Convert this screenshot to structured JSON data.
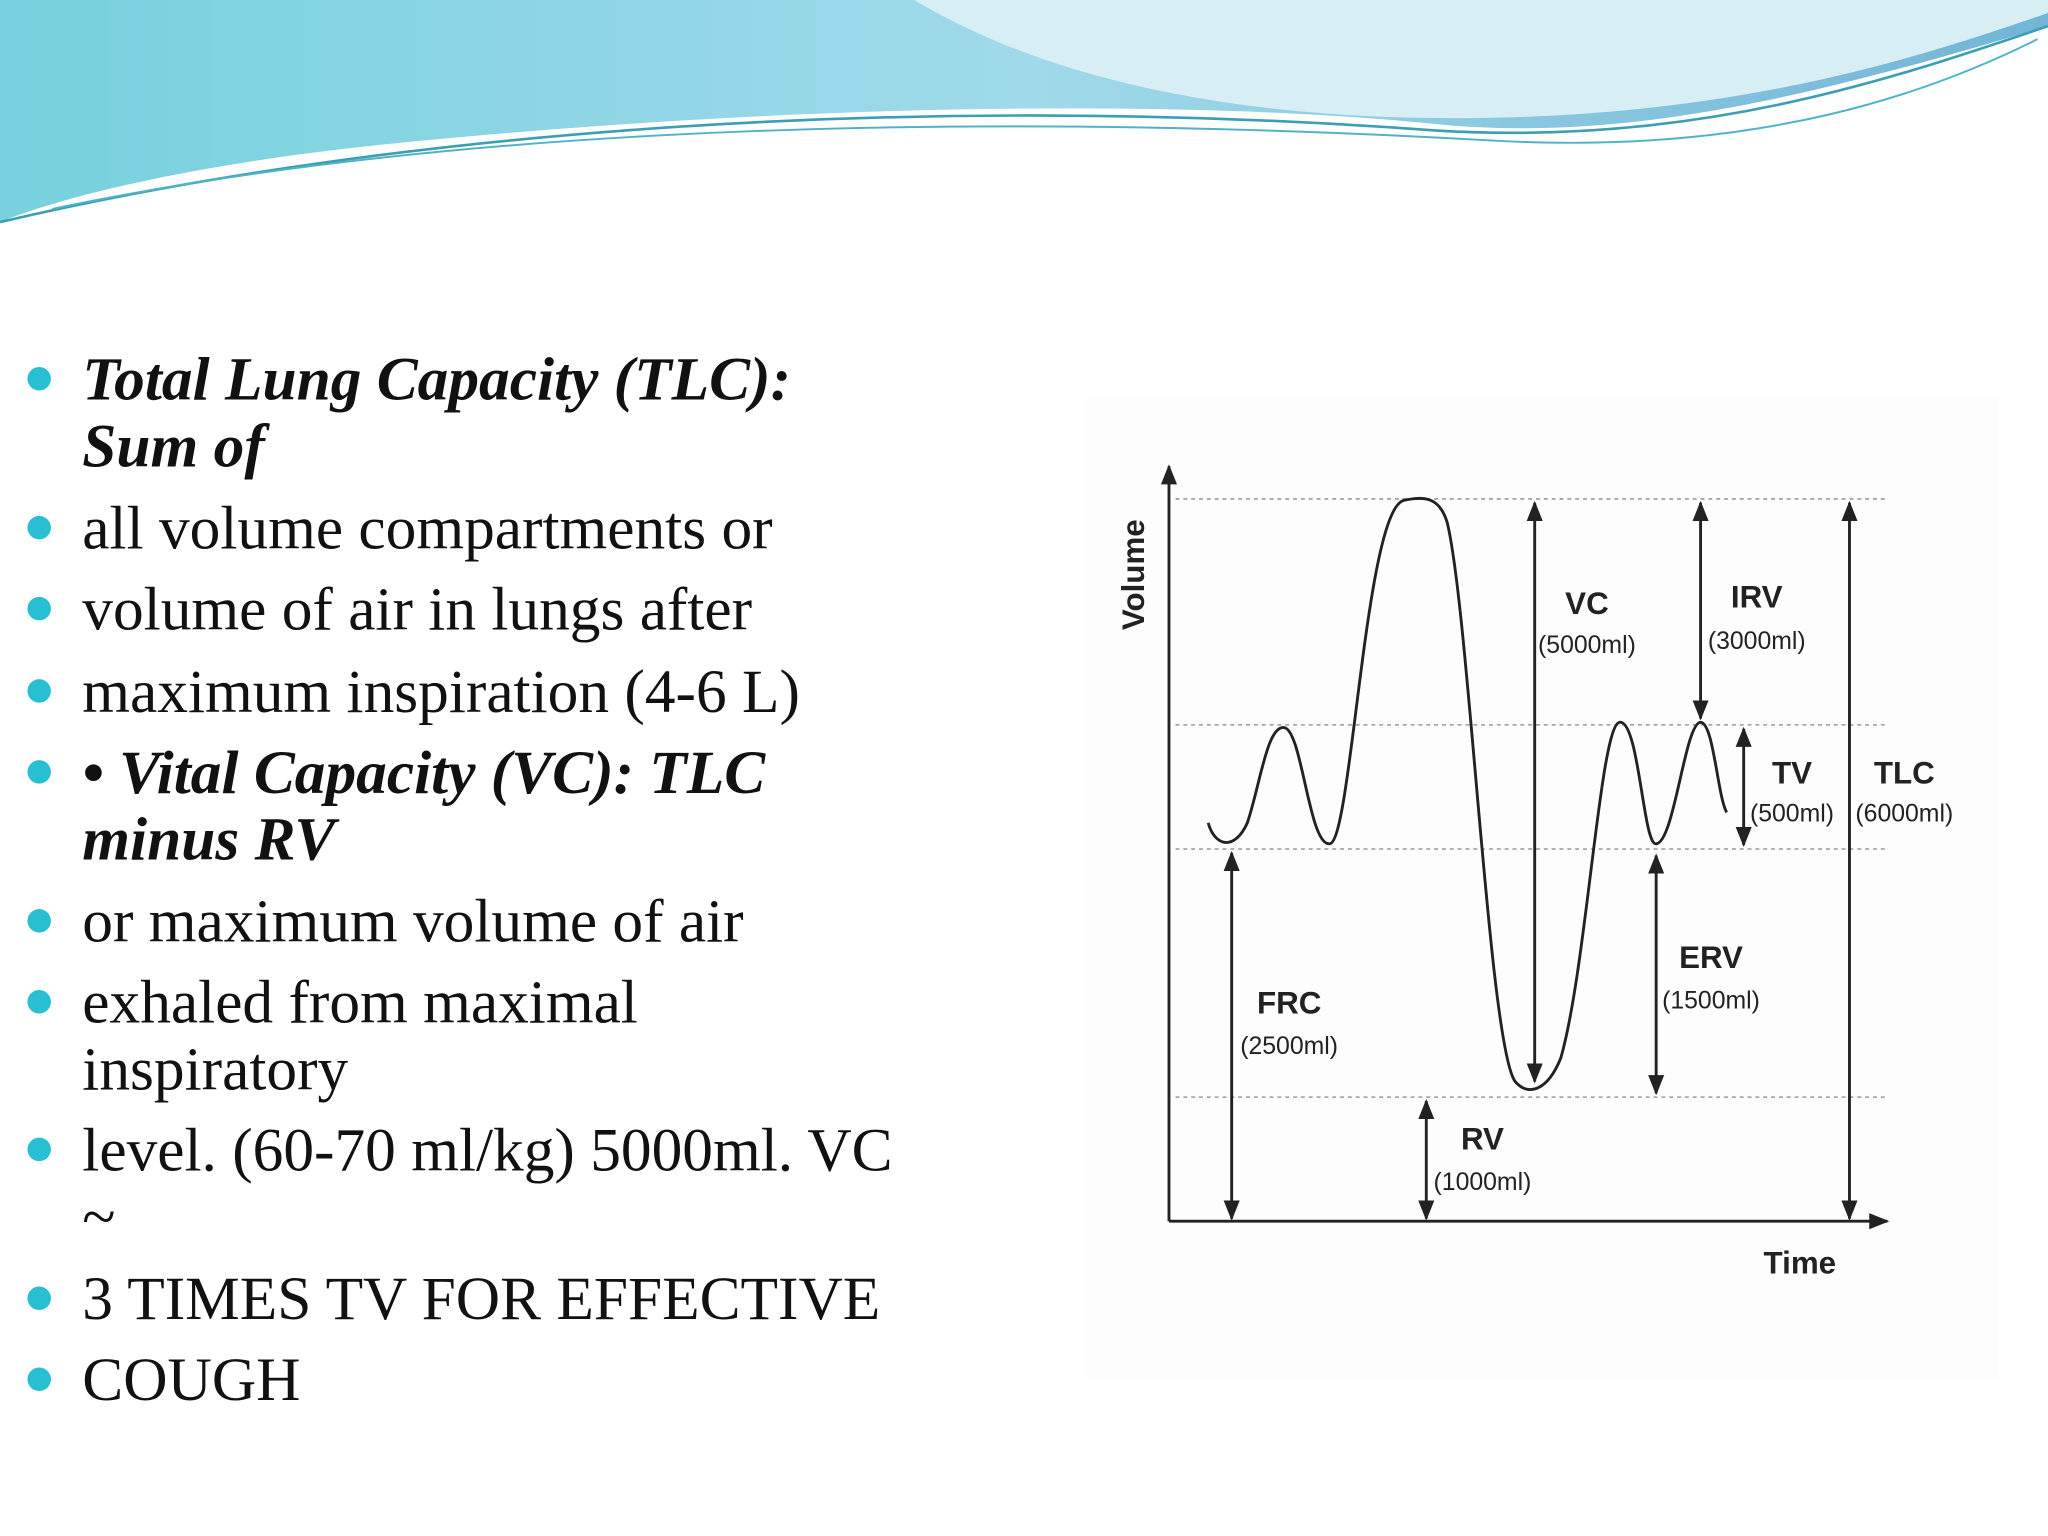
{
  "bullets": [
    {
      "lines": [
        "Total Lung Capacity (TLC):",
        "Sum of"
      ]
    },
    {
      "lines": [
        "all volume compartments or"
      ]
    },
    {
      "lines": [
        "volume of air in lungs after"
      ]
    },
    {
      "lines": [
        "maximum inspiration (4-6 L)"
      ]
    },
    {
      "lines": [
        "• Vital Capacity (VC): TLC",
        "minus RV"
      ]
    },
    {
      "lines": [
        "or maximum volume of air"
      ]
    },
    {
      "lines": [
        "exhaled from maximal",
        "inspiratory"
      ]
    },
    {
      "lines": [
        "level. (60-70 ml/kg) 5000ml. VC",
        "~"
      ]
    },
    {
      "lines": [
        "3 TIMES TV FOR EFFECTIVE"
      ]
    },
    {
      "lines": [
        "COUGH"
      ]
    }
  ],
  "diagram": {
    "y_axis": "Volume",
    "x_axis": "Time",
    "labels": [
      {
        "name": "VC",
        "value": "(5000ml)"
      },
      {
        "name": "IRV",
        "value": "(3000ml)"
      },
      {
        "name": "TV",
        "value": "(500ml)"
      },
      {
        "name": "TLC",
        "value": "(6000ml)"
      },
      {
        "name": "ERV",
        "value": "(1500ml)"
      },
      {
        "name": "FRC",
        "value": "(2500ml)"
      },
      {
        "name": "RV",
        "value": "(1000ml)"
      }
    ]
  }
}
